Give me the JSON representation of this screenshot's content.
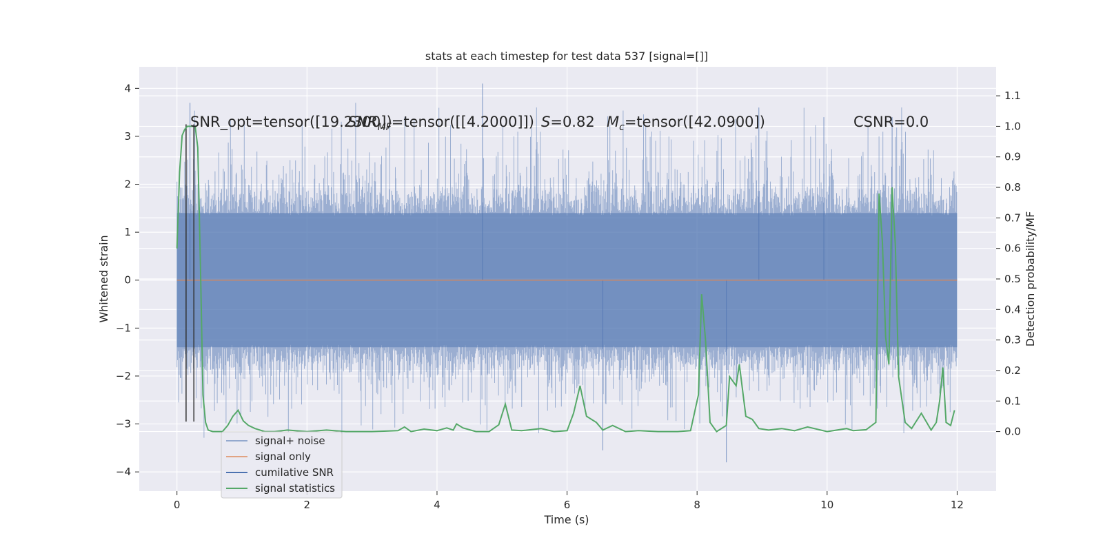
{
  "chart_data": {
    "type": "line",
    "title": "stats at each timestep for test data 537 [signal=[]]",
    "xlabel": "Time (s)",
    "ylabel_left": "Whitened strain",
    "ylabel_right": "Detection probability/MF",
    "xlim": [
      -0.58,
      12.6
    ],
    "ylim_left": [
      -4.4,
      4.45
    ],
    "ylim_right": [
      -0.195,
      1.195
    ],
    "x_ticks": [
      0,
      2,
      4,
      6,
      8,
      10,
      12
    ],
    "x_tick_labels": [
      "0",
      "2",
      "4",
      "6",
      "8",
      "10",
      "12"
    ],
    "y_left_ticks": [
      -4,
      -3,
      -2,
      -1,
      0,
      1,
      2,
      3,
      4
    ],
    "y_left_tick_labels": [
      "−4",
      "−3",
      "−2",
      "−1",
      "0",
      "1",
      "2",
      "3",
      "4"
    ],
    "y_right_ticks": [
      0.0,
      0.1,
      0.2,
      0.3,
      0.4,
      0.5,
      0.6,
      0.7,
      0.8,
      0.9,
      1.0,
      1.1
    ],
    "y_right_tick_labels": [
      "0.0",
      "0.1",
      "0.2",
      "0.3",
      "0.4",
      "0.5",
      "0.6",
      "0.7",
      "0.8",
      "0.9",
      "1.0",
      "1.1"
    ],
    "grid": true,
    "legend_position": "lower-left",
    "annotations": [
      {
        "text": "SNR_opt=tensor([19.2300])",
        "x": 0.2,
        "y": 3.3
      },
      {
        "text": "SNR",
        "sub": "MF",
        "rest": "=tensor([[4.2000]])",
        "x": 2.6,
        "y": 3.3
      },
      {
        "text": "S",
        "rest": "=0.82",
        "x": 5.7,
        "y": 3.3
      },
      {
        "text": "M",
        "sub": "c",
        "rest": "=tensor([42.0900])",
        "x": 6.6,
        "y": 3.3
      },
      {
        "text": "CSNR=0.0",
        "x": 10.4,
        "y": 3.3
      }
    ],
    "series": [
      {
        "name": "signal+ noise",
        "color": "#4c72b0",
        "note": "dense whitened strain noise, amplitude approx ±1.4 core with peaks to +4.1 / -3.8, spans 0 to 12 s"
      },
      {
        "name": "signal only",
        "color": "#dd8452",
        "x": [
          0,
          12
        ],
        "y": [
          0,
          0
        ]
      },
      {
        "name": "cumilative SNR",
        "color": "#55a868",
        "x": [
          0,
          12
        ],
        "y": [
          0,
          0
        ]
      },
      {
        "name": "signal statistics",
        "color": "#55a868",
        "axis": "right",
        "x": [
          0.0,
          0.04,
          0.08,
          0.12,
          0.16,
          0.2,
          0.24,
          0.28,
          0.32,
          0.36,
          0.4,
          0.44,
          0.48,
          0.55,
          0.62,
          0.7,
          0.78,
          0.86,
          0.94,
          1.02,
          1.1,
          1.2,
          1.35,
          1.5,
          1.7,
          2.0,
          2.3,
          2.6,
          3.0,
          3.4,
          3.5,
          3.6,
          3.8,
          4.0,
          4.15,
          4.25,
          4.3,
          4.4,
          4.6,
          4.8,
          4.95,
          5.05,
          5.15,
          5.3,
          5.6,
          5.8,
          6.0,
          6.1,
          6.2,
          6.3,
          6.45,
          6.55,
          6.7,
          6.9,
          7.1,
          7.4,
          7.7,
          7.9,
          8.02,
          8.07,
          8.13,
          8.2,
          8.3,
          8.45,
          8.5,
          8.6,
          8.65,
          8.75,
          8.85,
          8.95,
          9.1,
          9.3,
          9.5,
          9.7,
          10.0,
          10.3,
          10.4,
          10.6,
          10.75,
          10.8,
          10.85,
          10.9,
          10.95,
          11.0,
          11.05,
          11.1,
          11.2,
          11.3,
          11.45,
          11.6,
          11.68,
          11.73,
          11.78,
          11.83,
          11.9,
          11.96
        ],
        "y": [
          0.6,
          0.85,
          0.97,
          0.99,
          1.0,
          1.0,
          1.0,
          1.0,
          0.93,
          0.55,
          0.12,
          0.03,
          0.005,
          0.0,
          0.0,
          0.0,
          0.02,
          0.05,
          0.07,
          0.035,
          0.02,
          0.01,
          0.0,
          0.0,
          0.005,
          0.0,
          0.005,
          0.0,
          0.0,
          0.003,
          0.015,
          0.0,
          0.008,
          0.003,
          0.012,
          0.005,
          0.025,
          0.012,
          0.0,
          0.0,
          0.022,
          0.09,
          0.005,
          0.003,
          0.01,
          0.0,
          0.003,
          0.06,
          0.15,
          0.05,
          0.03,
          0.005,
          0.02,
          0.0,
          0.003,
          0.0,
          0.0,
          0.003,
          0.12,
          0.45,
          0.3,
          0.03,
          0.0,
          0.02,
          0.18,
          0.15,
          0.22,
          0.05,
          0.04,
          0.01,
          0.005,
          0.01,
          0.003,
          0.015,
          0.0,
          0.01,
          0.003,
          0.006,
          0.03,
          0.78,
          0.62,
          0.31,
          0.22,
          0.8,
          0.61,
          0.18,
          0.03,
          0.01,
          0.06,
          0.005,
          0.03,
          0.1,
          0.21,
          0.03,
          0.02,
          0.07
        ]
      }
    ],
    "vertical_markers": {
      "color": "#333333",
      "x": [
        0.14,
        0.26
      ],
      "y_from": -2.95,
      "y_to": 3.25
    }
  }
}
